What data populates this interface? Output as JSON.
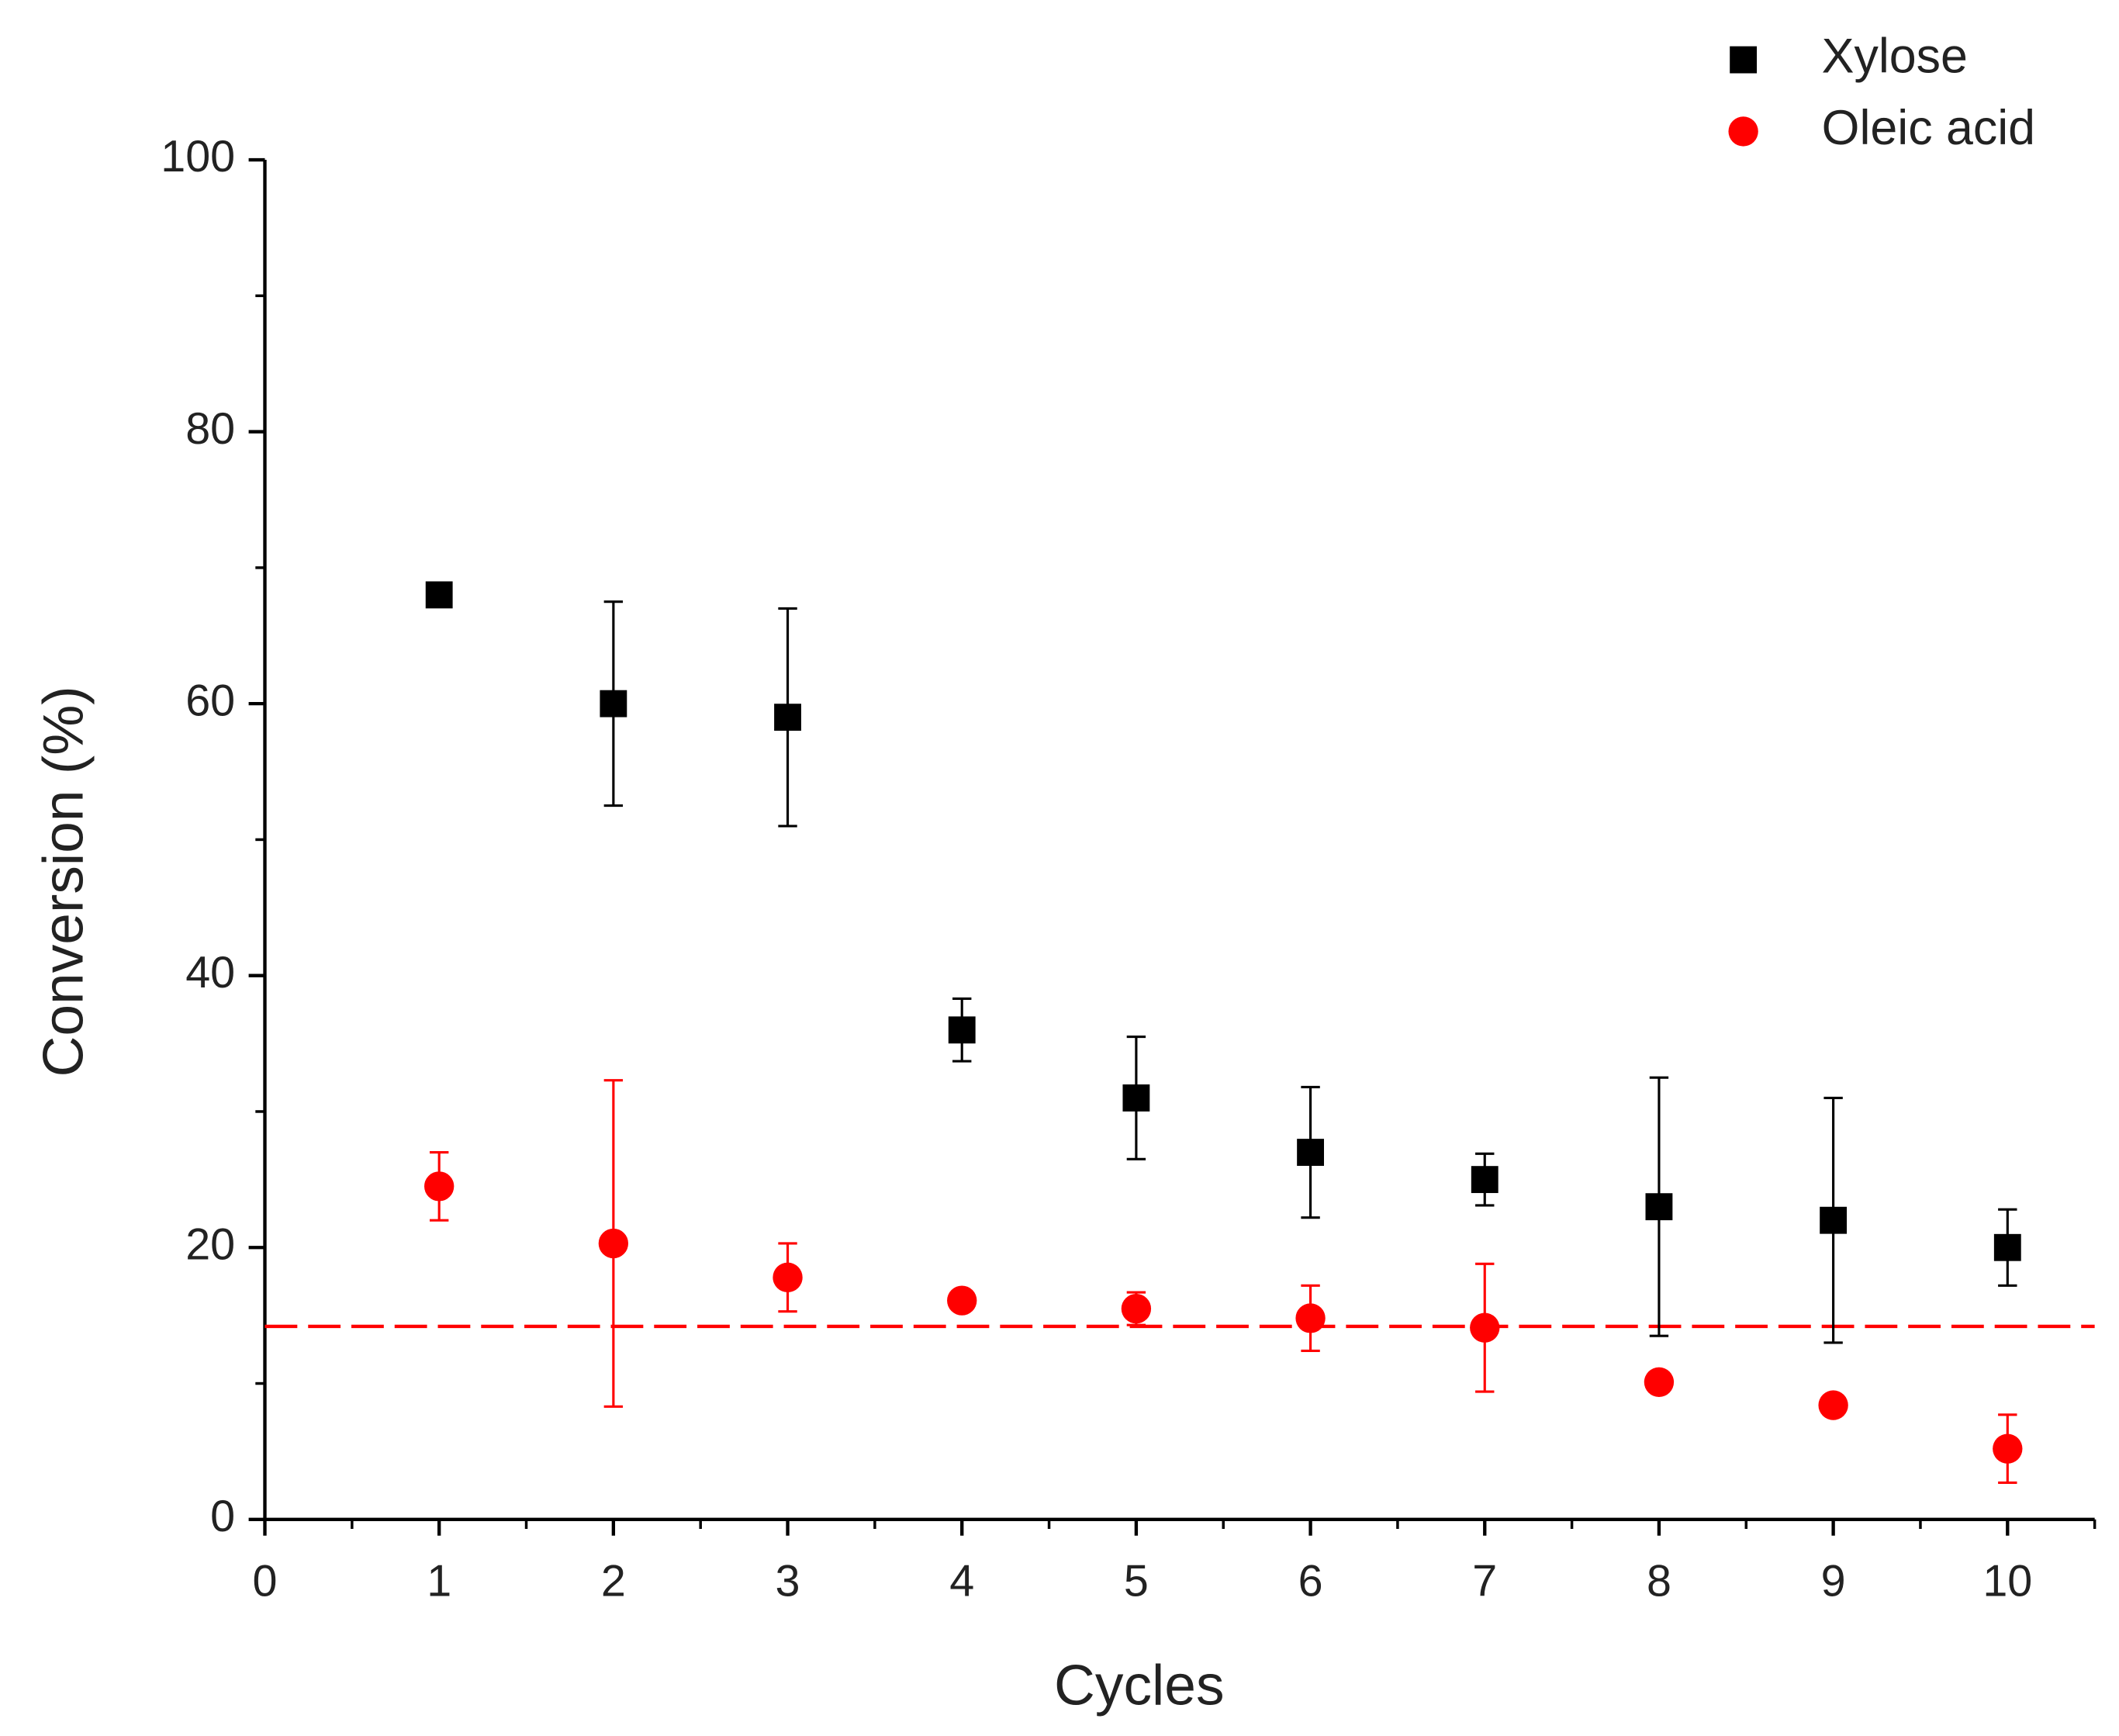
{
  "chart_data": {
    "type": "scatter",
    "x_label": "Cycles",
    "y_label": "Conversion (%)",
    "x": [
      1,
      2,
      3,
      4,
      5,
      6,
      7,
      8,
      9,
      10
    ],
    "series": [
      {
        "name": "Xylose",
        "color": "#000000",
        "marker": "square",
        "values": [
          68,
          60,
          59,
          36,
          31,
          27,
          25,
          23,
          22,
          20
        ],
        "errors": [
          null,
          7.5,
          8,
          2.3,
          4.5,
          4.8,
          1.9,
          9.5,
          9,
          2.8
        ]
      },
      {
        "name": "Oleic acid",
        "color": "#ff0000",
        "marker": "circle",
        "values": [
          24.5,
          20.3,
          17.8,
          16.1,
          15.5,
          14.8,
          14.1,
          10.1,
          8.4,
          5.2
        ],
        "errors": [
          2.5,
          12,
          2.5,
          null,
          1.2,
          2.4,
          4.7,
          null,
          null,
          2.5
        ]
      }
    ],
    "reference_line": {
      "value": 14.2,
      "color": "#ff0000",
      "style": "dashed"
    },
    "xlim": [
      0,
      10.5
    ],
    "xticks": [
      0,
      1,
      2,
      3,
      4,
      5,
      6,
      7,
      8,
      9,
      10
    ],
    "xminor": [
      0.5,
      1.5,
      2.5,
      3.5,
      4.5,
      5.5,
      6.5,
      7.5,
      8.5,
      9.5,
      10.5
    ],
    "ylim": [
      0,
      100
    ],
    "yticks": [
      0,
      20,
      40,
      60,
      80,
      100
    ],
    "yminor": [
      10,
      30,
      50,
      70,
      90
    ],
    "grid": false,
    "legend": "top-right"
  }
}
